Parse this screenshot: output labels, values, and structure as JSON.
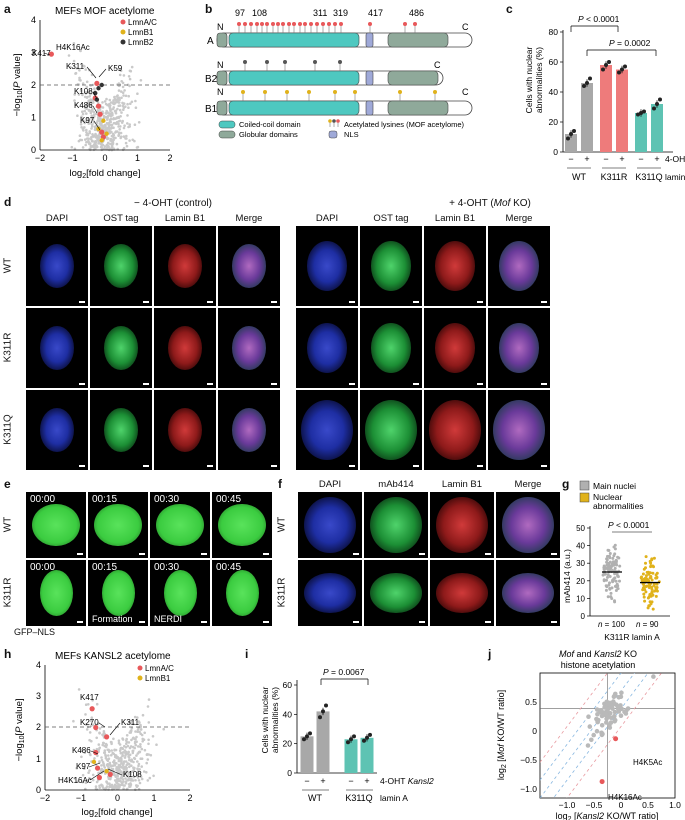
{
  "panels": {
    "a": "a",
    "b": "b",
    "c": "c",
    "d": "d",
    "e": "e",
    "f": "f",
    "g": "g",
    "h": "h",
    "i": "i",
    "j": "j"
  },
  "panel_a": {
    "title": "MEFs MOF acetylome",
    "legend": [
      {
        "name": "LmnA/C",
        "color": "#e8585a"
      },
      {
        "name": "LmnB1",
        "color": "#e0b21b"
      },
      {
        "name": "LmnB2",
        "color": "#333333"
      }
    ],
    "labels": [
      "K417",
      "H4K16Ac",
      "K311",
      "K59",
      "K108",
      "K486",
      "K97"
    ]
  },
  "panel_b": {
    "positions": [
      "97",
      "108",
      "311",
      "319",
      "417",
      "486"
    ],
    "rows": [
      "A",
      "B2",
      "B1"
    ],
    "termini": {
      "n": "N",
      "c": "C"
    },
    "legend": {
      "coiled": "Coiled-coil domain",
      "globular": "Globular domains",
      "acetyl": "Acetylated lysines (MOF acetylome)",
      "nls": "NLS"
    }
  },
  "panel_c": {
    "ylabel": "Cells with nuclear abnormalities (%)",
    "p1": "P < 0.0001",
    "p2": "P = 0.0002",
    "ohtminus": "−",
    "ohtplus": "+",
    "oht_label": "4-OHT",
    "groups": [
      "WT",
      "K311R",
      "K311Q"
    ],
    "group_suffix": "lamin A"
  },
  "panel_d": {
    "header_left": "− 4-OHT (control)",
    "header_right_prefix": "+ 4-OHT (",
    "header_right_italic": "Mof",
    "header_right_suffix": " KO)",
    "columns": [
      "DAPI",
      "OST tag",
      "Lamin B1",
      "Merge"
    ],
    "rows": [
      "WT",
      "K311R",
      "K311Q"
    ]
  },
  "panel_e": {
    "rows": [
      "WT",
      "K311R"
    ],
    "times": [
      "00:00",
      "00:15",
      "00:30",
      "00:45"
    ],
    "formation": "Formation",
    "nerdi": "NERDI",
    "caption": "GFP–NLS"
  },
  "panel_f": {
    "columns": [
      "DAPI",
      "mAb414",
      "Lamin B1",
      "Merge"
    ],
    "rows": [
      "WT",
      "K311R"
    ]
  },
  "panel_g": {
    "legend": [
      "Main nuclei",
      "Nuclear abnormalities"
    ],
    "ylabel": "mAb414 (a.u.)",
    "p": "P < 0.0001",
    "n1": "n = 100",
    "n2": "n = 90",
    "xlabel": "K311R lamin A"
  },
  "panel_h": {
    "title": "MEFs KANSL2 acetylome",
    "legend": [
      {
        "name": "LmnA/C",
        "color": "#e8585a"
      },
      {
        "name": "LmnB1",
        "color": "#e0b21b"
      }
    ],
    "labels": [
      "K417",
      "K270",
      "K311",
      "K486",
      "K97",
      "K108",
      "H4K16Ac"
    ]
  },
  "panel_i": {
    "ylabel": "Cells with nuclear abnormalities (%)",
    "p": "P = 0.0067",
    "oht_label": "4-OHT",
    "kansl": "Kansl2",
    "groups": [
      "WT",
      "K311Q"
    ],
    "group_suffix": "lamin A"
  },
  "panel_j": {
    "title_l1": "Mof and Kansl2 KO",
    "title_l2": "histone acetylation",
    "labels": [
      "H4K5Ac",
      "H4K16Ac"
    ]
  },
  "chart_data": [
    {
      "id": "a",
      "type": "scatter",
      "title": "MEFs MOF acetylome",
      "xlabel": "log2[fold change]",
      "ylabel": "−log10[P value]",
      "xlim": [
        -2,
        2
      ],
      "ylim": [
        0,
        4
      ],
      "xticks": [
        -2,
        -1,
        0,
        1,
        2
      ],
      "yticks": [
        0,
        1,
        2,
        3,
        4
      ],
      "threshold": 2,
      "series": [
        {
          "name": "LmnA/C",
          "points": [
            [
              -1.65,
              2.95
            ],
            [
              -0.25,
              2.05
            ],
            [
              -0.3,
              1.6
            ],
            [
              -0.2,
              1.35
            ],
            [
              -0.15,
              1.1
            ],
            [
              -0.1,
              0.55
            ],
            [
              -0.05,
              0.4
            ]
          ]
        },
        {
          "name": "LmnB1",
          "points": [
            [
              -0.2,
              0.65
            ],
            [
              -0.05,
              0.9
            ],
            [
              -0.1,
              0.3
            ],
            [
              0.05,
              0.5
            ]
          ]
        },
        {
          "name": "LmnB2",
          "points": [
            [
              -0.3,
              1.75
            ],
            [
              -0.2,
              1.9
            ],
            [
              -0.1,
              2.0
            ],
            [
              -0.25,
              1.55
            ]
          ]
        }
      ]
    },
    {
      "id": "c",
      "type": "bar",
      "ylabel": "Cells with nuclear abnormalities (%)",
      "ylim": [
        0,
        80
      ],
      "yticks": [
        0,
        20,
        40,
        60,
        80
      ],
      "categories": [
        "WT −",
        "WT +",
        "K311R −",
        "K311R +",
        "K311Q −",
        "K311Q +"
      ],
      "values": [
        12,
        46,
        58,
        55,
        26,
        32
      ],
      "colors": [
        "#a8a8a8",
        "#a8a8a8",
        "#ee7b7b",
        "#ee7b7b",
        "#5ec3b3",
        "#5ec3b3"
      ],
      "points": [
        [
          9,
          12,
          14
        ],
        [
          44,
          46,
          49
        ],
        [
          55,
          58,
          60
        ],
        [
          53,
          55,
          57
        ],
        [
          25,
          26,
          27
        ],
        [
          29,
          32,
          35
        ]
      ]
    },
    {
      "id": "g",
      "type": "scatter",
      "ylabel": "mAb414 (a.u.)",
      "ylim": [
        0,
        50
      ],
      "yticks": [
        0,
        10,
        20,
        30,
        40,
        50
      ],
      "categories": [
        "Main nuclei",
        "Nuclear abnormalities"
      ],
      "means": [
        25,
        19
      ],
      "ns": [
        100,
        90
      ]
    },
    {
      "id": "h",
      "type": "scatter",
      "title": "MEFs KANSL2 acetylome",
      "xlabel": "log2[fold change]",
      "ylabel": "−log10[P value]",
      "xlim": [
        -2,
        2
      ],
      "ylim": [
        0,
        4
      ],
      "xticks": [
        -2,
        -1,
        0,
        1,
        2
      ],
      "yticks": [
        0,
        1,
        2,
        3,
        4
      ],
      "threshold": 2,
      "series": [
        {
          "name": "LmnA/C",
          "points": [
            [
              -0.7,
              2.6
            ],
            [
              -0.6,
              2.0
            ],
            [
              -0.3,
              1.7
            ],
            [
              -0.6,
              1.2
            ],
            [
              -0.55,
              0.7
            ],
            [
              -0.2,
              0.5
            ],
            [
              -0.5,
              0.4
            ]
          ]
        },
        {
          "name": "LmnB1",
          "points": [
            [
              -0.65,
              0.9
            ],
            [
              -0.3,
              0.6
            ]
          ]
        }
      ]
    },
    {
      "id": "i",
      "type": "bar",
      "ylabel": "Cells with nuclear abnormalities (%)",
      "ylim": [
        0,
        60
      ],
      "yticks": [
        0,
        20,
        40,
        60
      ],
      "categories": [
        "WT −",
        "WT +",
        "K311Q −",
        "K311Q +"
      ],
      "values": [
        25,
        42,
        23,
        24
      ],
      "colors": [
        "#a8a8a8",
        "#a8a8a8",
        "#5ec3b3",
        "#5ec3b3"
      ],
      "points": [
        [
          23,
          25,
          27
        ],
        [
          38,
          42,
          46
        ],
        [
          21,
          23,
          25
        ],
        [
          22,
          24,
          26
        ]
      ]
    },
    {
      "id": "j",
      "type": "scatter",
      "title": "Mof and Kansl2 KO histone acetylation",
      "xlabel": "log2 [Kansl2 KO/WT ratio]",
      "ylabel": "log2 [Mof KO/WT ratio]",
      "xlim": [
        -1.25,
        1.25
      ],
      "ylim": [
        -1.25,
        0.5
      ],
      "xticks": [
        -1.0,
        -0.5,
        0,
        0.5,
        1.0
      ],
      "yticks": [
        -1.0,
        -0.5,
        0,
        0.5
      ],
      "highlight": [
        [
          0.15,
          -0.42
        ],
        [
          -0.1,
          -1.02
        ]
      ]
    }
  ]
}
